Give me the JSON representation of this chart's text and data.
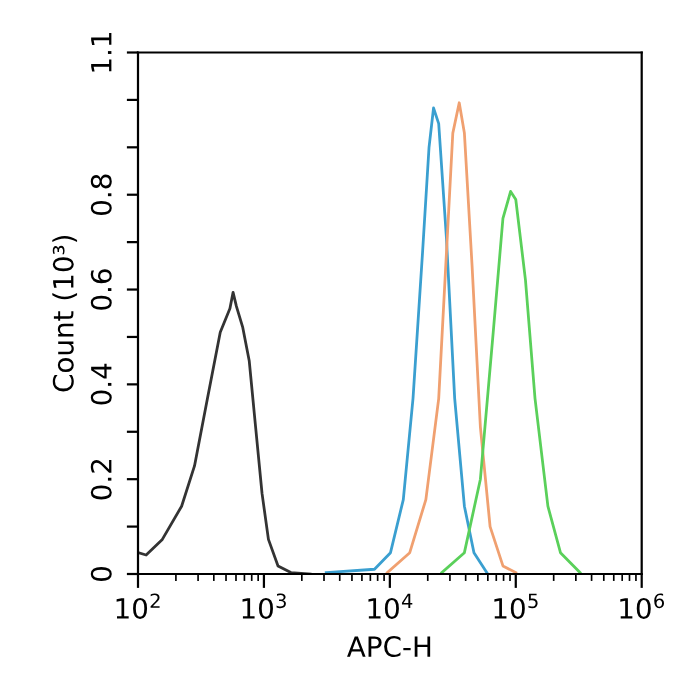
{
  "chart_data": {
    "type": "line",
    "xlabel": "APC-H",
    "ylabel": "Count (10³)",
    "log": "x",
    "grid": false,
    "marker": "none",
    "line_style": "solid",
    "xlim": [
      100,
      1000000
    ],
    "xticks": [
      {
        "value": 100,
        "label": "10$^{2}$"
      },
      {
        "value": 1000,
        "label": "10$^{3}$"
      },
      {
        "value": 10000,
        "label": "10$^{4}$"
      },
      {
        "value": 100000,
        "label": "10$^{5}$"
      },
      {
        "value": 1000000,
        "label": "10$^{6}$"
      }
    ],
    "ylim": [
      0,
      1.1
    ],
    "yticks": [
      0,
      {
        "value": 0.1,
        "label": null
      },
      0.2,
      {
        "value": 0.3,
        "label": null
      },
      0.4,
      {
        "value": 0.5,
        "label": null
      },
      0.6,
      {
        "value": 0.7,
        "label": null
      },
      0.8,
      {
        "value": 0.9,
        "label": null
      },
      {
        "value": 1.0,
        "label": null
      },
      1.1
    ],
    "series": [
      {
        "color": "#333333",
        "x": [
          100,
          116,
          156,
          222,
          281,
          356,
          450,
          537,
          569,
          604,
          679,
          764,
          859,
          966,
          1086,
          1294,
          1637,
          2328
        ],
        "values": [
          0.045,
          0.04,
          0.073,
          0.143,
          0.228,
          0.37,
          0.51,
          0.56,
          0.594,
          0.565,
          0.52,
          0.45,
          0.31,
          0.17,
          0.073,
          0.017,
          0.003,
          0
        ]
      },
      {
        "color": "#3a9fd0",
        "x": [
          3126,
          7551,
          10120,
          12790,
          15270,
          18200,
          20470,
          22230,
          24430,
          28120,
          32730,
          39080,
          46560,
          58880
        ],
        "values": [
          0.003,
          0.01,
          0.045,
          0.157,
          0.37,
          0.68,
          0.9,
          0.983,
          0.95,
          0.71,
          0.37,
          0.143,
          0.045,
          0.003
        ]
      },
      {
        "color": "#f0a070",
        "x": [
          9550,
          14390,
          19320,
          24430,
          31620,
          35560,
          39080,
          44980,
          52360,
          62520,
          79070,
          100000
        ],
        "values": [
          0.003,
          0.045,
          0.157,
          0.37,
          0.93,
          0.994,
          0.93,
          0.65,
          0.31,
          0.1,
          0.017,
          0.003
        ]
      },
      {
        "color": "#5ad05a",
        "x": [
          25880,
          39080,
          52360,
          66220,
          79070,
          91000,
          100000,
          119400,
          142200,
          179900,
          226400,
          323600
        ],
        "values": [
          0.003,
          0.045,
          0.2,
          0.51,
          0.75,
          0.807,
          0.79,
          0.62,
          0.37,
          0.143,
          0.045,
          0.003
        ]
      }
    ]
  }
}
